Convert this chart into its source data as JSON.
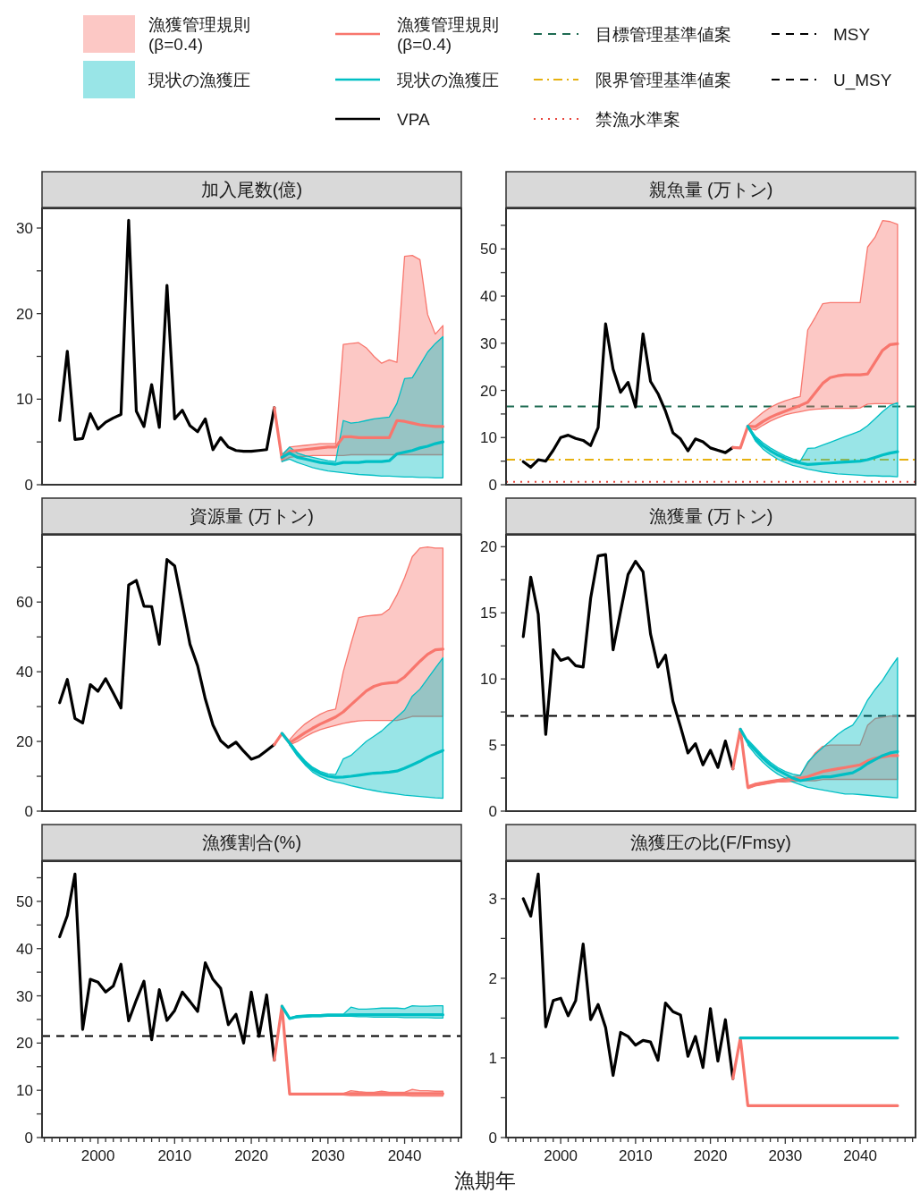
{
  "chart_data": [
    {
      "type": "line",
      "title": "加入尾数(億)",
      "legend": "top",
      "tick_labels": "y",
      "xlim": [
        1992.7,
        2047.4
      ],
      "ylim": [
        0,
        32.3
      ],
      "yticks": [
        0,
        {
          "value": 5,
          "label": null
        },
        10,
        {
          "value": 15,
          "label": null
        },
        20,
        {
          "value": 25,
          "label": null
        },
        30
      ],
      "series": [
        {
          "name": "VPA",
          "color": "#000000",
          "x": [
            1995,
            1996,
            1997,
            1998,
            1999,
            2000,
            2001,
            2002,
            2003,
            2004,
            2005,
            2006,
            2007,
            2008,
            2009,
            2010,
            2011,
            2012,
            2013,
            2014,
            2015,
            2016,
            2017,
            2018,
            2019,
            2020,
            2021,
            2022,
            2023
          ],
          "values": [
            7.5,
            15.6,
            5.3,
            5.4,
            8.3,
            6.5,
            7.3,
            7.8,
            8.2,
            30.9,
            8.6,
            6.8,
            11.7,
            6.7,
            23.3,
            7.7,
            8.7,
            6.9,
            6.2,
            7.7,
            4.1,
            5.5,
            4.4,
            4.0,
            3.9,
            3.9,
            4.0,
            4.1,
            9.0
          ]
        },
        {
          "name": "漁獲管理規則\n(β=0.4)",
          "color": "#f8766d",
          "x": [
            2023,
            2024,
            2025,
            2026,
            2027,
            2028,
            2029,
            2030,
            2031,
            2032,
            2033,
            2034,
            2035,
            2036,
            2037,
            2038,
            2039,
            2040,
            2041,
            2042,
            2043,
            2044,
            2045
          ],
          "values": [
            9.0,
            3.0,
            3.9,
            4.0,
            4.1,
            4.2,
            4.3,
            4.4,
            4.4,
            5.6,
            5.6,
            5.5,
            5.5,
            5.5,
            5.5,
            5.5,
            7.5,
            7.4,
            7.2,
            7.0,
            6.9,
            6.8,
            6.8
          ],
          "upper": [
            null,
            3.3,
            4.4,
            4.5,
            4.6,
            4.7,
            4.8,
            4.8,
            4.8,
            16.4,
            16.5,
            16.6,
            16.0,
            15.0,
            14.2,
            14.6,
            14.3,
            26.7,
            26.8,
            26.3,
            19.9,
            17.6,
            18.6
          ],
          "lower": [
            null,
            2.7,
            3.2,
            3.3,
            3.3,
            3.4,
            3.4,
            3.4,
            3.4,
            3.4,
            3.5,
            3.5,
            3.5,
            3.5,
            3.5,
            3.5,
            3.5,
            3.5,
            3.5,
            3.5,
            3.5,
            3.5,
            3.5
          ]
        },
        {
          "name": "現状の漁獲圧",
          "color": "#00bfc4",
          "x": [
            2024,
            2025,
            2026,
            2027,
            2028,
            2029,
            2030,
            2031,
            2032,
            2033,
            2034,
            2035,
            2036,
            2037,
            2038,
            2039,
            2040,
            2041,
            2042,
            2043,
            2044,
            2045
          ],
          "values": [
            3.2,
            3.7,
            3.2,
            3.0,
            2.8,
            2.6,
            2.5,
            2.4,
            2.6,
            2.6,
            2.6,
            2.7,
            2.7,
            2.7,
            2.8,
            3.6,
            3.8,
            4.0,
            4.3,
            4.5,
            4.8,
            5.0
          ],
          "upper": [
            3.5,
            4.4,
            3.7,
            3.4,
            3.2,
            3.0,
            2.8,
            2.7,
            7.5,
            7.2,
            7.3,
            7.5,
            7.7,
            7.8,
            7.9,
            9.5,
            12.4,
            12.5,
            14.0,
            15.5,
            16.5,
            17.3
          ],
          "lower": [
            2.7,
            3.0,
            2.6,
            2.3,
            2.0,
            1.8,
            1.6,
            1.5,
            1.4,
            1.3,
            1.2,
            1.15,
            1.1,
            1.0,
            1.0,
            0.95,
            0.9,
            0.9,
            0.85,
            0.85,
            0.8,
            0.8
          ]
        }
      ]
    },
    {
      "type": "line",
      "title": "親魚量 (万トン)",
      "legend": "top",
      "tick_labels": "y",
      "xlim": [
        1992.7,
        2047.4
      ],
      "ylim": [
        0,
        58.6
      ],
      "yticks": [
        0,
        {
          "value": 5,
          "label": null
        },
        10,
        {
          "value": 15,
          "label": null
        },
        20,
        {
          "value": 25,
          "label": null
        },
        30,
        {
          "value": 35,
          "label": null
        },
        40,
        {
          "value": 45,
          "label": null
        },
        50,
        {
          "value": 55,
          "label": null
        }
      ],
      "ref_lines": [
        {
          "axis": "y",
          "value": 16.6,
          "label": "目標管理基準値案",
          "color": "#1e6b52",
          "line_style": "dashed"
        },
        {
          "axis": "y",
          "value": 5.3,
          "label": "限界管理基準値案",
          "color": "#e6b10f",
          "line_style": "dashdot"
        },
        {
          "axis": "y",
          "value": 0.6,
          "label": "禁漁水準案",
          "color": "#e8473e",
          "line_style": "dotted"
        }
      ],
      "series": [
        {
          "color": "#000000",
          "x": [
            1995,
            1996,
            1997,
            1998,
            1999,
            2000,
            2001,
            2002,
            2003,
            2004,
            2005,
            2006,
            2007,
            2008,
            2009,
            2010,
            2011,
            2012,
            2013,
            2014,
            2015,
            2016,
            2017,
            2018,
            2019,
            2020,
            2021,
            2022,
            2023
          ],
          "values": [
            4.9,
            3.7,
            5.3,
            5.0,
            7.3,
            10.0,
            10.5,
            9.8,
            9.4,
            8.3,
            12.1,
            34.1,
            24.5,
            19.6,
            21.7,
            16.5,
            32.0,
            21.9,
            19.3,
            15.6,
            11.0,
            9.7,
            7.2,
            9.7,
            9.1,
            7.8,
            7.3,
            6.8,
            7.9
          ]
        },
        {
          "color": "#f8766d",
          "x": [
            2023,
            2024,
            2025,
            2026,
            2027,
            2028,
            2029,
            2030,
            2031,
            2032,
            2033,
            2034,
            2035,
            2036,
            2037,
            2038,
            2039,
            2040,
            2041,
            2042,
            2043,
            2044,
            2045
          ],
          "values": [
            7.9,
            7.8,
            12.4,
            12.3,
            13.4,
            14.3,
            15.0,
            15.6,
            16.2,
            16.8,
            17.5,
            19.5,
            21.5,
            22.7,
            23.1,
            23.3,
            23.3,
            23.3,
            23.5,
            26.0,
            28.5,
            29.7,
            29.9
          ],
          "upper": [
            null,
            null,
            12.6,
            14.0,
            15.3,
            16.4,
            17.2,
            17.8,
            18.3,
            18.7,
            32.8,
            35.5,
            38.4,
            38.6,
            38.6,
            38.6,
            38.6,
            38.6,
            50.4,
            52.5,
            56.0,
            55.8,
            55.2
          ],
          "lower": [
            null,
            null,
            12.0,
            11.6,
            12.6,
            13.5,
            14.2,
            14.8,
            15.2,
            15.5,
            15.8,
            16.0,
            16.1,
            16.2,
            16.2,
            16.2,
            16.2,
            16.3,
            17.1,
            17.2,
            17.2,
            17.2,
            17.2
          ]
        },
        {
          "color": "#00bfc4",
          "x": [
            2025,
            2026,
            2027,
            2028,
            2029,
            2030,
            2031,
            2032,
            2033,
            2034,
            2035,
            2036,
            2037,
            2038,
            2039,
            2040,
            2041,
            2042,
            2043,
            2044,
            2045
          ],
          "values": [
            12.4,
            9.8,
            8.3,
            7.2,
            6.3,
            5.6,
            5.0,
            4.6,
            4.3,
            4.4,
            4.5,
            4.6,
            4.7,
            4.8,
            4.9,
            5.0,
            5.3,
            5.8,
            6.3,
            6.7,
            7.0
          ],
          "upper": [
            12.4,
            10.3,
            8.9,
            7.8,
            6.9,
            6.1,
            5.5,
            5.0,
            7.7,
            7.8,
            8.4,
            9.0,
            9.6,
            10.2,
            10.8,
            11.4,
            12.5,
            14.0,
            15.5,
            16.8,
            17.4
          ],
          "lower": [
            12.4,
            9.3,
            7.6,
            6.4,
            5.4,
            4.7,
            4.1,
            3.7,
            3.3,
            3.0,
            2.7,
            2.5,
            2.3,
            2.2,
            2.1,
            2.0,
            1.9,
            1.9,
            1.8,
            1.8,
            1.7
          ]
        }
      ]
    },
    {
      "type": "line",
      "title": "資源量 (万トン)",
      "tick_labels": "y",
      "xlim": [
        1992.7,
        2047.4
      ],
      "ylim": [
        0,
        79.3
      ],
      "yticks": [
        0,
        {
          "value": 10,
          "label": null
        },
        20,
        {
          "value": 30,
          "label": null
        },
        40,
        {
          "value": 50,
          "label": null
        },
        60,
        {
          "value": 70,
          "label": null
        }
      ],
      "series": [
        {
          "color": "#000000",
          "x": [
            1995,
            1996,
            1997,
            1998,
            1999,
            2000,
            2001,
            2002,
            2003,
            2004,
            2005,
            2006,
            2007,
            2008,
            2009,
            2010,
            2011,
            2012,
            2013,
            2014,
            2015,
            2016,
            2017,
            2018,
            2019,
            2020,
            2021,
            2022,
            2023
          ],
          "values": [
            31.1,
            37.8,
            26.6,
            25.3,
            36.3,
            34.4,
            38.0,
            33.9,
            29.6,
            64.9,
            66.2,
            58.8,
            58.7,
            47.9,
            72.2,
            70.4,
            59.3,
            47.9,
            41.7,
            32.2,
            24.7,
            20.2,
            18.3,
            19.8,
            17.2,
            14.9,
            15.7,
            17.4,
            19.1
          ]
        },
        {
          "color": "#f8766d",
          "x": [
            2023,
            2024,
            2025,
            2026,
            2027,
            2028,
            2029,
            2030,
            2031,
            2032,
            2033,
            2034,
            2035,
            2036,
            2037,
            2038,
            2039,
            2040,
            2041,
            2042,
            2043,
            2044,
            2045
          ],
          "values": [
            19.1,
            22.3,
            19.6,
            21.0,
            22.5,
            23.8,
            25.0,
            26.0,
            27.0,
            28.5,
            30.5,
            32.5,
            34.5,
            35.8,
            36.5,
            36.8,
            37.0,
            38.5,
            40.8,
            43.0,
            45.0,
            46.3,
            46.5
          ],
          "upper": [
            null,
            null,
            20.5,
            23.0,
            25.0,
            26.5,
            27.8,
            28.8,
            29.3,
            40.0,
            48.0,
            55.5,
            56.0,
            56.2,
            56.4,
            58.0,
            62.0,
            67.0,
            73.0,
            75.5,
            75.8,
            75.5,
            75.5
          ],
          "lower": [
            null,
            null,
            19.0,
            20.0,
            21.3,
            22.5,
            23.4,
            24.0,
            24.6,
            25.2,
            25.6,
            25.9,
            26.0,
            26.0,
            26.0,
            26.0,
            26.0,
            26.5,
            27.2,
            27.2,
            27.2,
            27.2,
            27.2
          ]
        },
        {
          "color": "#00bfc4",
          "x": [
            2024,
            2025,
            2026,
            2027,
            2028,
            2029,
            2030,
            2031,
            2032,
            2033,
            2034,
            2035,
            2036,
            2037,
            2038,
            2039,
            2040,
            2041,
            2042,
            2043,
            2044,
            2045
          ],
          "values": [
            22.3,
            19.5,
            16.5,
            14.0,
            12.0,
            10.8,
            10.0,
            9.7,
            9.8,
            10.0,
            10.3,
            10.6,
            10.9,
            11.0,
            11.2,
            11.5,
            12.3,
            13.3,
            14.3,
            15.5,
            16.5,
            17.4
          ],
          "upper": [
            null,
            20.0,
            17.0,
            14.5,
            12.6,
            11.4,
            10.7,
            10.5,
            15.0,
            16.0,
            18.0,
            20.0,
            21.5,
            23.0,
            25.0,
            27.0,
            29.0,
            33.0,
            35.0,
            38.0,
            41.0,
            44.0
          ],
          "lower": [
            null,
            19.0,
            15.8,
            13.3,
            11.2,
            9.9,
            9.0,
            8.4,
            7.9,
            7.3,
            6.8,
            6.3,
            5.9,
            5.5,
            5.2,
            4.9,
            4.6,
            4.4,
            4.2,
            4.0,
            3.8,
            3.7
          ]
        }
      ]
    },
    {
      "type": "line",
      "title": "漁獲量 (万トン)",
      "legend": "top",
      "tick_labels": "y",
      "xlim": [
        1992.7,
        2047.4
      ],
      "ylim": [
        0,
        20.9
      ],
      "yticks": [
        0,
        {
          "value": 2.5,
          "label": null
        },
        5,
        {
          "value": 7.5,
          "label": null
        },
        10,
        {
          "value": 12.5,
          "label": null
        },
        15,
        {
          "value": 17.5,
          "label": null
        },
        20
      ],
      "ref_lines": [
        {
          "axis": "y",
          "value": 7.2,
          "label": "MSY",
          "color": "#000000",
          "line_style": "dashed"
        }
      ],
      "series": [
        {
          "color": "#000000",
          "x": [
            1995,
            1996,
            1997,
            1998,
            1999,
            2000,
            2001,
            2002,
            2003,
            2004,
            2005,
            2006,
            2007,
            2008,
            2009,
            2010,
            2011,
            2012,
            2013,
            2014,
            2015,
            2016,
            2017,
            2018,
            2019,
            2020,
            2021,
            2022,
            2023
          ],
          "values": [
            13.2,
            17.7,
            14.9,
            5.8,
            12.2,
            11.4,
            11.6,
            11.0,
            10.9,
            16.1,
            19.3,
            19.4,
            12.2,
            15.1,
            17.9,
            18.9,
            18.1,
            13.4,
            10.9,
            11.8,
            8.3,
            6.4,
            4.4,
            5.1,
            3.5,
            4.6,
            3.3,
            5.3,
            3.2
          ]
        },
        {
          "color": "#f8766d",
          "x": [
            2023,
            2024,
            2025,
            2026,
            2027,
            2028,
            2029,
            2030,
            2031,
            2032,
            2033,
            2034,
            2035,
            2036,
            2037,
            2038,
            2039,
            2040,
            2041,
            2042,
            2043,
            2044,
            2045
          ],
          "values": [
            3.2,
            6.2,
            1.8,
            2.0,
            2.1,
            2.2,
            2.3,
            2.35,
            2.4,
            2.5,
            2.6,
            2.8,
            3.0,
            3.1,
            3.2,
            3.3,
            3.4,
            3.5,
            3.8,
            4.0,
            4.1,
            4.2,
            4.2
          ],
          "upper": [
            null,
            null,
            1.9,
            2.1,
            2.2,
            2.3,
            2.4,
            2.5,
            2.6,
            2.7,
            3.6,
            4.4,
            4.9,
            5.0,
            5.0,
            5.0,
            5.0,
            5.0,
            6.5,
            7.0,
            7.1,
            7.2,
            7.2
          ],
          "lower": [
            null,
            null,
            1.7,
            1.9,
            2.0,
            2.1,
            2.2,
            2.2,
            2.25,
            2.3,
            2.3,
            2.3,
            2.4,
            2.4,
            2.4,
            2.4,
            2.4,
            2.4,
            2.4,
            2.4,
            2.4,
            2.4,
            2.4
          ]
        },
        {
          "color": "#00bfc4",
          "x": [
            2024,
            2025,
            2026,
            2027,
            2028,
            2029,
            2030,
            2031,
            2032,
            2033,
            2034,
            2035,
            2036,
            2037,
            2038,
            2039,
            2040,
            2041,
            2042,
            2043,
            2044,
            2045
          ],
          "values": [
            6.2,
            5.2,
            4.6,
            4.0,
            3.5,
            3.1,
            2.8,
            2.5,
            2.3,
            2.4,
            2.5,
            2.6,
            2.6,
            2.7,
            2.8,
            2.9,
            3.2,
            3.6,
            3.9,
            4.2,
            4.4,
            4.5
          ],
          "upper": [
            null,
            5.4,
            4.8,
            4.2,
            3.7,
            3.3,
            3.0,
            2.8,
            2.7,
            3.7,
            4.3,
            4.8,
            5.3,
            5.8,
            6.2,
            6.5,
            7.3,
            8.4,
            9.2,
            9.9,
            10.8,
            11.6
          ],
          "lower": [
            null,
            5.0,
            4.3,
            3.7,
            3.2,
            2.8,
            2.5,
            2.2,
            2.0,
            1.8,
            1.7,
            1.6,
            1.5,
            1.4,
            1.3,
            1.3,
            1.25,
            1.2,
            1.15,
            1.1,
            1.05,
            1.0
          ]
        }
      ]
    },
    {
      "type": "line",
      "title": "漁獲割合(%)",
      "legend": "top",
      "xlabel": "漁期年",
      "xlim": [
        1992.7,
        2047.4
      ],
      "ylim": [
        0,
        58.5
      ],
      "yticks": [
        0,
        {
          "value": 5,
          "label": null
        },
        10,
        {
          "value": 15,
          "label": null
        },
        20,
        {
          "value": 25,
          "label": null
        },
        30,
        {
          "value": 35,
          "label": null
        },
        40,
        {
          "value": 45,
          "label": null
        },
        50,
        {
          "value": 55,
          "label": null
        }
      ],
      "xticks": [
        {
          "value": 1993,
          "label": null
        },
        {
          "value": 1994,
          "label": null
        },
        {
          "value": 1995,
          "label": null
        },
        {
          "value": 1996,
          "label": null
        },
        {
          "value": 1997,
          "label": null
        },
        {
          "value": 1998,
          "label": null
        },
        {
          "value": 1999,
          "label": null
        },
        2000,
        {
          "value": 2001,
          "label": null
        },
        {
          "value": 2002,
          "label": null
        },
        {
          "value": 2003,
          "label": null
        },
        {
          "value": 2004,
          "label": null
        },
        {
          "value": 2005,
          "label": null
        },
        {
          "value": 2006,
          "label": null
        },
        {
          "value": 2007,
          "label": null
        },
        {
          "value": 2008,
          "label": null
        },
        {
          "value": 2009,
          "label": null
        },
        2010,
        {
          "value": 2011,
          "label": null
        },
        {
          "value": 2012,
          "label": null
        },
        {
          "value": 2013,
          "label": null
        },
        {
          "value": 2014,
          "label": null
        },
        {
          "value": 2015,
          "label": null
        },
        {
          "value": 2016,
          "label": null
        },
        {
          "value": 2017,
          "label": null
        },
        {
          "value": 2018,
          "label": null
        },
        {
          "value": 2019,
          "label": null
        },
        2020,
        {
          "value": 2021,
          "label": null
        },
        {
          "value": 2022,
          "label": null
        },
        {
          "value": 2023,
          "label": null
        },
        {
          "value": 2024,
          "label": null
        },
        {
          "value": 2025,
          "label": null
        },
        {
          "value": 2026,
          "label": null
        },
        {
          "value": 2027,
          "label": null
        },
        {
          "value": 2028,
          "label": null
        },
        {
          "value": 2029,
          "label": null
        },
        2030,
        {
          "value": 2031,
          "label": null
        },
        {
          "value": 2032,
          "label": null
        },
        {
          "value": 2033,
          "label": null
        },
        {
          "value": 2034,
          "label": null
        },
        {
          "value": 2035,
          "label": null
        },
        {
          "value": 2036,
          "label": null
        },
        {
          "value": 2037,
          "label": null
        },
        {
          "value": 2038,
          "label": null
        },
        {
          "value": 2039,
          "label": null
        },
        2040,
        {
          "value": 2041,
          "label": null
        },
        {
          "value": 2042,
          "label": null
        },
        {
          "value": 2043,
          "label": null
        },
        {
          "value": 2044,
          "label": null
        },
        {
          "value": 2045,
          "label": null
        },
        {
          "value": 2046,
          "label": null
        },
        {
          "value": 2047,
          "label": null
        }
      ],
      "ref_lines": [
        {
          "axis": "y",
          "value": 21.5,
          "label": "U_MSY",
          "color": "#000000",
          "line_style": "dashed"
        }
      ],
      "series": [
        {
          "color": "#000000",
          "x": [
            1995,
            1996,
            1997,
            1998,
            1999,
            2000,
            2001,
            2002,
            2003,
            2004,
            2005,
            2006,
            2007,
            2008,
            2009,
            2010,
            2011,
            2012,
            2013,
            2014,
            2015,
            2016,
            2017,
            2018,
            2019,
            2020,
            2021,
            2022,
            2023
          ],
          "values": [
            42.5,
            47.0,
            55.8,
            22.9,
            33.5,
            32.9,
            30.8,
            32.1,
            36.7,
            24.7,
            29.1,
            33.1,
            20.7,
            31.3,
            24.8,
            26.9,
            30.8,
            28.8,
            26.7,
            37.0,
            33.5,
            31.6,
            23.9,
            26.1,
            20.0,
            30.8,
            21.4,
            30.2,
            16.4
          ]
        },
        {
          "color": "#f8766d",
          "x": [
            2023,
            2024,
            2025,
            2026,
            2027,
            2028,
            2029,
            2030,
            2031,
            2032,
            2033,
            2034,
            2035,
            2036,
            2037,
            2038,
            2039,
            2040,
            2041,
            2042,
            2043,
            2044,
            2045
          ],
          "values": [
            16.4,
            27.8,
            9.2,
            9.2,
            9.2,
            9.2,
            9.2,
            9.2,
            9.2,
            9.2,
            9.3,
            9.3,
            9.3,
            9.3,
            9.3,
            9.3,
            9.3,
            9.3,
            9.3,
            9.3,
            9.3,
            9.3,
            9.3
          ],
          "upper": [
            null,
            null,
            9.3,
            9.3,
            9.3,
            9.3,
            9.3,
            9.3,
            9.3,
            9.3,
            9.9,
            9.7,
            9.6,
            9.6,
            9.8,
            9.6,
            9.6,
            9.6,
            10.2,
            9.9,
            9.9,
            9.8,
            9.8
          ],
          "lower": [
            null,
            null,
            9.0,
            9.0,
            9.0,
            9.0,
            9.0,
            9.0,
            9.0,
            9.0,
            8.9,
            8.9,
            8.9,
            8.9,
            8.9,
            8.9,
            8.9,
            8.9,
            8.8,
            8.8,
            8.8,
            8.8,
            8.8
          ]
        },
        {
          "color": "#00bfc4",
          "x": [
            2024,
            2025,
            2026,
            2027,
            2028,
            2029,
            2030,
            2031,
            2032,
            2033,
            2034,
            2035,
            2036,
            2037,
            2038,
            2039,
            2040,
            2041,
            2042,
            2043,
            2044,
            2045
          ],
          "values": [
            27.8,
            25.2,
            25.6,
            25.7,
            25.8,
            25.8,
            25.9,
            25.9,
            25.9,
            26.0,
            26.0,
            26.0,
            26.0,
            26.0,
            26.0,
            26.0,
            26.0,
            26.0,
            26.0,
            26.0,
            26.0,
            26.0
          ],
          "upper": [
            null,
            25.3,
            25.8,
            25.9,
            26.0,
            26.0,
            26.1,
            26.1,
            26.1,
            27.6,
            27.2,
            27.2,
            27.3,
            27.4,
            27.4,
            27.4,
            27.3,
            27.9,
            27.8,
            27.8,
            27.9,
            27.9
          ],
          "lower": [
            null,
            25.1,
            25.4,
            25.5,
            25.6,
            25.6,
            25.7,
            25.7,
            25.7,
            25.7,
            25.6,
            25.6,
            25.5,
            25.5,
            25.5,
            25.5,
            25.4,
            25.4,
            25.4,
            25.4,
            25.3,
            25.3
          ]
        }
      ]
    },
    {
      "type": "line",
      "title": "漁獲圧の比(F/Fmsy)",
      "xlim": [
        1992.7,
        2047.4
      ],
      "ylim": [
        0,
        3.47
      ],
      "yticks": [
        0,
        {
          "value": 0.5,
          "label": null
        },
        1,
        {
          "value": 1.5,
          "label": null
        },
        2,
        {
          "value": 2.5,
          "label": null
        },
        3
      ],
      "xticks": [
        {
          "value": 1993,
          "label": null
        },
        {
          "value": 1994,
          "label": null
        },
        {
          "value": 1995,
          "label": null
        },
        {
          "value": 1996,
          "label": null
        },
        {
          "value": 1997,
          "label": null
        },
        {
          "value": 1998,
          "label": null
        },
        {
          "value": 1999,
          "label": null
        },
        2000,
        {
          "value": 2001,
          "label": null
        },
        {
          "value": 2002,
          "label": null
        },
        {
          "value": 2003,
          "label": null
        },
        {
          "value": 2004,
          "label": null
        },
        {
          "value": 2005,
          "label": null
        },
        {
          "value": 2006,
          "label": null
        },
        {
          "value": 2007,
          "label": null
        },
        {
          "value": 2008,
          "label": null
        },
        {
          "value": 2009,
          "label": null
        },
        2010,
        {
          "value": 2011,
          "label": null
        },
        {
          "value": 2012,
          "label": null
        },
        {
          "value": 2013,
          "label": null
        },
        {
          "value": 2014,
          "label": null
        },
        {
          "value": 2015,
          "label": null
        },
        {
          "value": 2016,
          "label": null
        },
        {
          "value": 2017,
          "label": null
        },
        {
          "value": 2018,
          "label": null
        },
        {
          "value": 2019,
          "label": null
        },
        2020,
        {
          "value": 2021,
          "label": null
        },
        {
          "value": 2022,
          "label": null
        },
        {
          "value": 2023,
          "label": null
        },
        {
          "value": 2024,
          "label": null
        },
        {
          "value": 2025,
          "label": null
        },
        {
          "value": 2026,
          "label": null
        },
        {
          "value": 2027,
          "label": null
        },
        {
          "value": 2028,
          "label": null
        },
        {
          "value": 2029,
          "label": null
        },
        2030,
        {
          "value": 2031,
          "label": null
        },
        {
          "value": 2032,
          "label": null
        },
        {
          "value": 2033,
          "label": null
        },
        {
          "value": 2034,
          "label": null
        },
        {
          "value": 2035,
          "label": null
        },
        {
          "value": 2036,
          "label": null
        },
        {
          "value": 2037,
          "label": null
        },
        {
          "value": 2038,
          "label": null
        },
        {
          "value": 2039,
          "label": null
        },
        2040,
        {
          "value": 2041,
          "label": null
        },
        {
          "value": 2042,
          "label": null
        },
        {
          "value": 2043,
          "label": null
        },
        {
          "value": 2044,
          "label": null
        },
        {
          "value": 2045,
          "label": null
        },
        {
          "value": 2046,
          "label": null
        },
        {
          "value": 2047,
          "label": null
        }
      ],
      "series": [
        {
          "color": "#000000",
          "x": [
            1995,
            1996,
            1997,
            1998,
            1999,
            2000,
            2001,
            2002,
            2003,
            2004,
            2005,
            2006,
            2007,
            2008,
            2009,
            2010,
            2011,
            2012,
            2013,
            2014,
            2015,
            2016,
            2017,
            2018,
            2019,
            2020,
            2021,
            2022,
            2023
          ],
          "values": [
            3.0,
            2.78,
            3.31,
            1.39,
            1.72,
            1.75,
            1.53,
            1.72,
            2.43,
            1.48,
            1.67,
            1.38,
            0.78,
            1.32,
            1.27,
            1.16,
            1.22,
            1.2,
            0.97,
            1.69,
            1.58,
            1.54,
            1.02,
            1.27,
            0.88,
            1.62,
            0.96,
            1.48,
            0.74
          ]
        },
        {
          "color": "#f8766d",
          "x": [
            2023,
            2024,
            2025,
            2026,
            2027,
            2028,
            2029,
            2030,
            2031,
            2032,
            2033,
            2034,
            2035,
            2036,
            2037,
            2038,
            2039,
            2040,
            2041,
            2042,
            2043,
            2044,
            2045
          ],
          "values": [
            0.74,
            1.25,
            0.4,
            0.4,
            0.4,
            0.4,
            0.4,
            0.4,
            0.4,
            0.4,
            0.4,
            0.4,
            0.4,
            0.4,
            0.4,
            0.4,
            0.4,
            0.4,
            0.4,
            0.4,
            0.4,
            0.4,
            0.4
          ]
        },
        {
          "color": "#00bfc4",
          "x": [
            2024,
            2025,
            2026,
            2027,
            2028,
            2029,
            2030,
            2031,
            2032,
            2033,
            2034,
            2035,
            2036,
            2037,
            2038,
            2039,
            2040,
            2041,
            2042,
            2043,
            2044,
            2045
          ],
          "values": [
            1.25,
            1.25,
            1.25,
            1.25,
            1.25,
            1.25,
            1.25,
            1.25,
            1.25,
            1.25,
            1.25,
            1.25,
            1.25,
            1.25,
            1.25,
            1.25,
            1.25,
            1.25,
            1.25,
            1.25,
            1.25,
            1.25
          ]
        }
      ]
    }
  ]
}
